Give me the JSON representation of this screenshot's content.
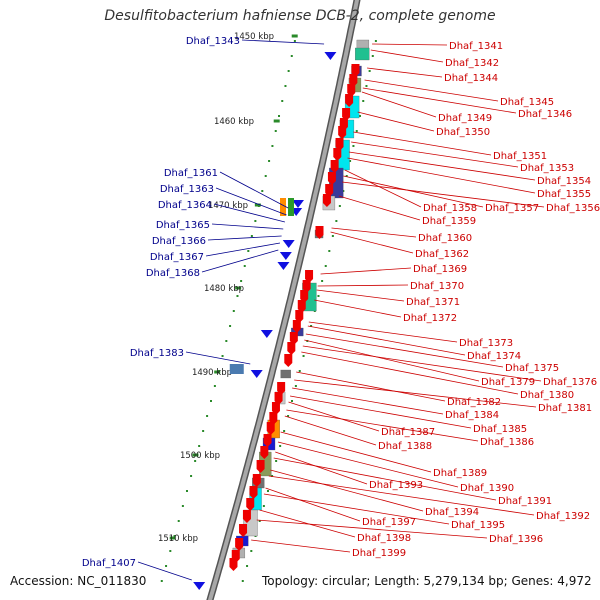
{
  "title": "Desulfitobacterium hafniense DCB-2, complete genome",
  "footer": {
    "accession": "Accession: NC_011830",
    "topology": "Topology: circular; Length: 5,279,134 bp; Genes: 4,972"
  },
  "colors": {
    "left_label": "#00008b",
    "right_label": "#cc0000",
    "backbone": "#888888",
    "tick": "#2a8a2a"
  },
  "ticks": [
    "1450 kbp",
    "1460 kbp",
    "1470 kbp",
    "1480 kbp",
    "1490 kbp",
    "1500 kbp",
    "1510 kbp"
  ],
  "left_labels": [
    "Dhaf_1343",
    "Dhaf_1361",
    "Dhaf_1363",
    "Dhaf_1364",
    "Dhaf_1365",
    "Dhaf_1366",
    "Dhaf_1367",
    "Dhaf_1368",
    "Dhaf_1383",
    "Dhaf_1407"
  ],
  "right_labels": [
    "Dhaf_1341",
    "Dhaf_1342",
    "Dhaf_1344",
    "Dhaf_1345",
    "Dhaf_1346",
    "Dhaf_1349",
    "Dhaf_1350",
    "Dhaf_1351",
    "Dhaf_1353",
    "Dhaf_1354",
    "Dhaf_1355",
    "Dhaf_1358",
    "Dhaf_1357",
    "Dhaf_1356",
    "Dhaf_1359",
    "Dhaf_1360",
    "Dhaf_1362",
    "Dhaf_1369",
    "Dhaf_1370",
    "Dhaf_1371",
    "Dhaf_1372",
    "Dhaf_1373",
    "Dhaf_1374",
    "Dhaf_1375",
    "Dhaf_1379",
    "Dhaf_1376",
    "Dhaf_1380",
    "Dhaf_1382",
    "Dhaf_1381",
    "Dhaf_1384",
    "Dhaf_1385",
    "Dhaf_1387",
    "Dhaf_1386",
    "Dhaf_1388",
    "Dhaf_1389",
    "Dhaf_1390",
    "Dhaf_1393",
    "Dhaf_1391",
    "Dhaf_1394",
    "Dhaf_1392",
    "Dhaf_1397",
    "Dhaf_1395",
    "Dhaf_1398",
    "Dhaf_1396",
    "Dhaf_1399"
  ]
}
